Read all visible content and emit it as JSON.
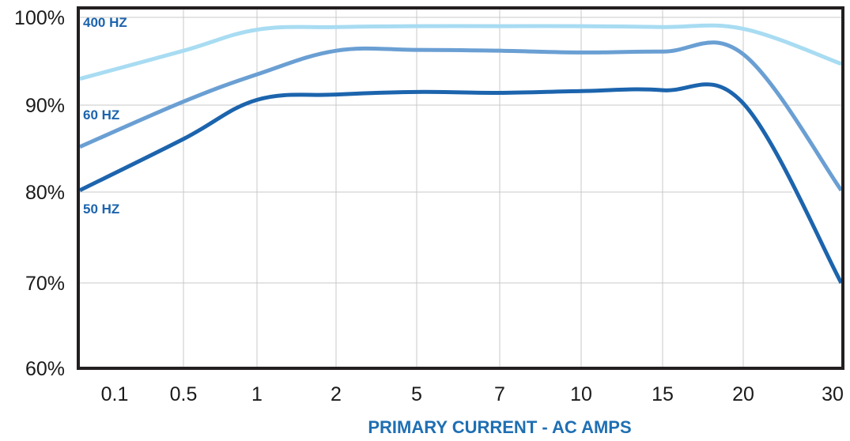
{
  "chart_data": {
    "type": "line",
    "title": "",
    "xlabel": "PRIMARY CURRENT - AC AMPS",
    "ylabel": "",
    "categories": [
      "0.1",
      "0.5",
      "1",
      "2",
      "5",
      "7",
      "10",
      "15",
      "20",
      "30"
    ],
    "x_tick_labels": [
      "0.1",
      "0.5",
      "1",
      "2",
      "5",
      "7",
      "10",
      "15",
      "20",
      "30"
    ],
    "y_tick_labels": [
      "100%",
      "90%",
      "80%",
      "70%",
      "60%"
    ],
    "y_tick_values": [
      100,
      90,
      80,
      70,
      60
    ],
    "ylim": [
      60,
      100
    ],
    "grid": true,
    "legend": "inline labels at left",
    "series": [
      {
        "name": "400 HZ",
        "color": "#a8dcf2",
        "points": [
          [
            0,
            93.0
          ],
          [
            1,
            96.2
          ],
          [
            2,
            98.6
          ],
          [
            3,
            98.9
          ],
          [
            4,
            99.0
          ],
          [
            5,
            99.0
          ],
          [
            6,
            99.0
          ],
          [
            7,
            98.9
          ],
          [
            8,
            98.7
          ],
          [
            9,
            94.7
          ]
        ]
      },
      {
        "name": "60 HZ",
        "color": "#6a9fd3",
        "points": [
          [
            0,
            85.2
          ],
          [
            1,
            90.4
          ],
          [
            2,
            93.5
          ],
          [
            3,
            96.2
          ],
          [
            4,
            96.3
          ],
          [
            5,
            96.2
          ],
          [
            6,
            96.0
          ],
          [
            7,
            96.1
          ],
          [
            8,
            95.8
          ],
          [
            9,
            80.2
          ]
        ]
      },
      {
        "name": "50 HZ",
        "color": "#1c64ad",
        "points": [
          [
            0,
            80.2
          ],
          [
            1,
            86.1
          ],
          [
            2,
            90.6
          ],
          [
            3,
            91.2
          ],
          [
            4,
            91.5
          ],
          [
            5,
            91.4
          ],
          [
            6,
            91.6
          ],
          [
            7,
            91.7
          ],
          [
            8,
            90.2
          ],
          [
            9,
            70.0
          ]
        ]
      }
    ]
  }
}
